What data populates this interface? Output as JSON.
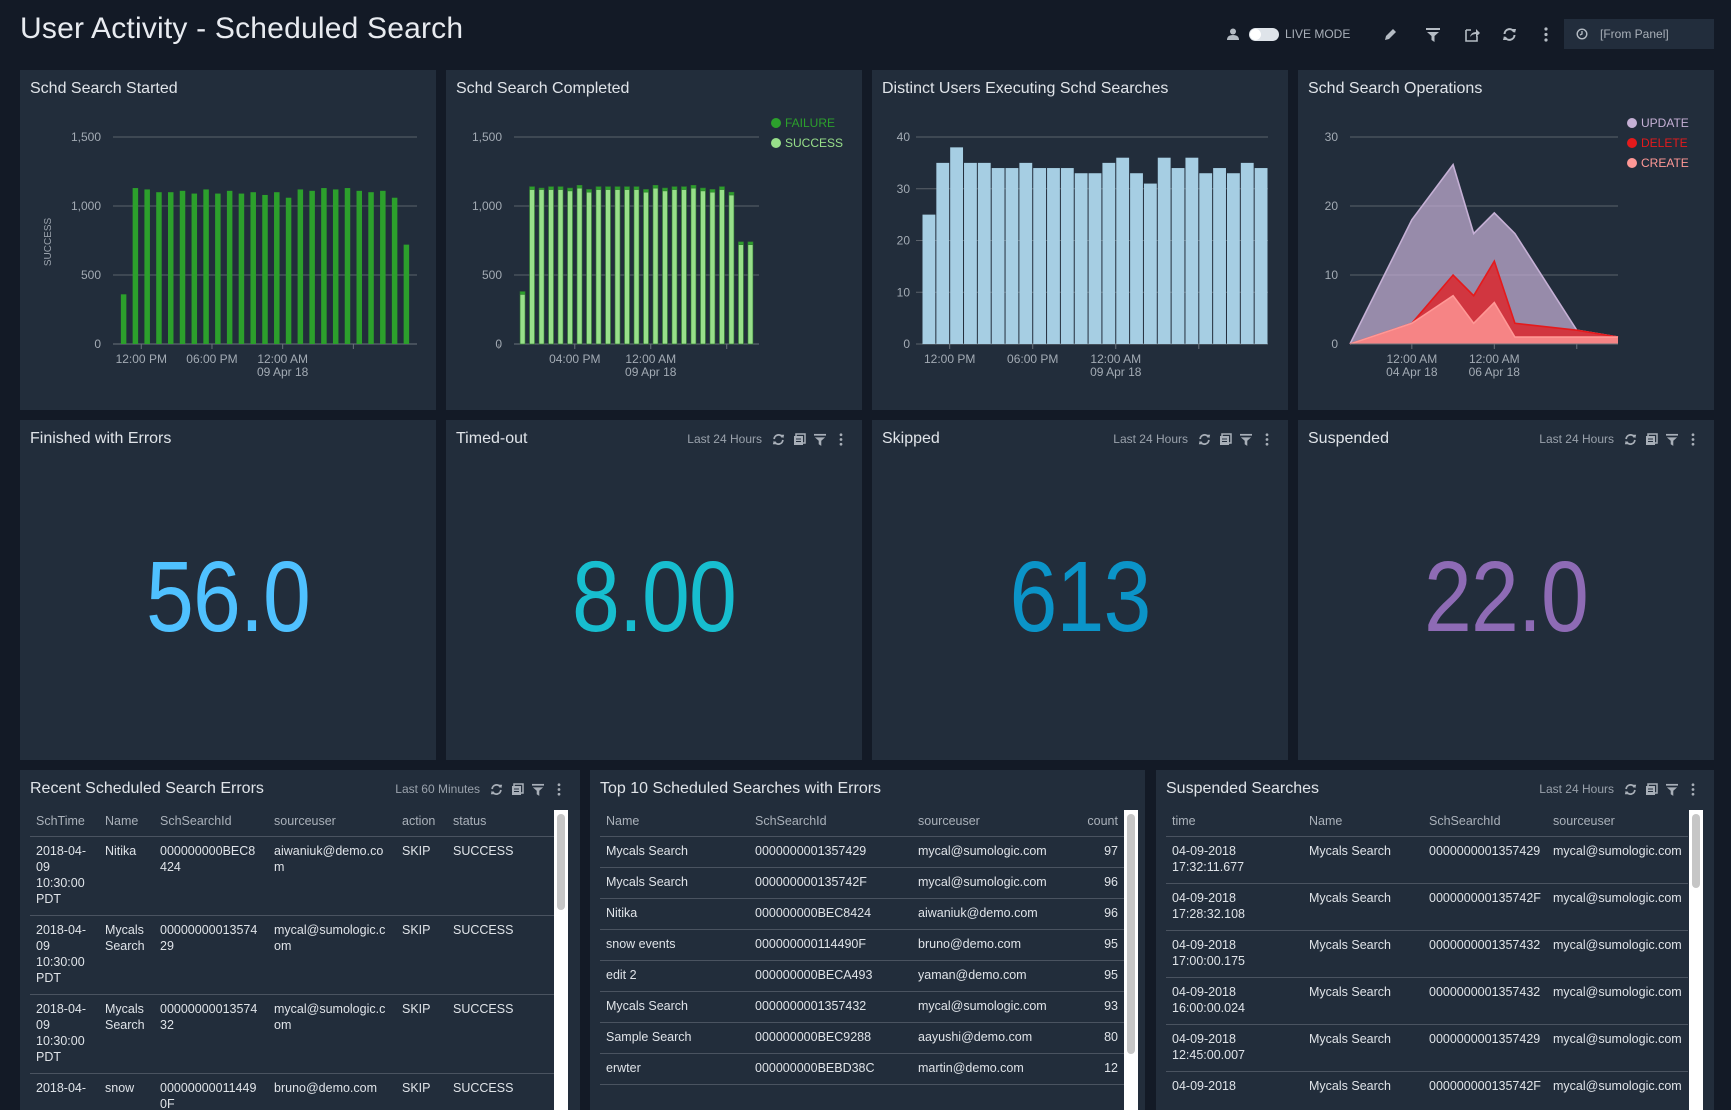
{
  "header": {
    "title": "User Activity - Scheduled Search",
    "live_mode_label": "LIVE MODE",
    "live_mode_on": false,
    "time_range": "[From Panel]",
    "icons": [
      "user-icon",
      "pencil-icon",
      "filter-icon",
      "share-icon",
      "refresh-icon",
      "more-vertical-icon",
      "clock-icon"
    ]
  },
  "panels": {
    "started": {
      "title": "Schd Search Started"
    },
    "completed": {
      "title": "Schd Search Completed"
    },
    "distinct": {
      "title": "Distinct Users Executing Schd Searches"
    },
    "operations": {
      "title": "Schd Search Operations"
    },
    "errors": {
      "title": "Finished with Errors",
      "value": "56.0",
      "color": "#4fc1ff"
    },
    "timedout": {
      "title": "Timed-out",
      "range": "Last 24 Hours",
      "value": "8.00",
      "color": "#17becf"
    },
    "skipped": {
      "title": "Skipped",
      "range": "Last 24 Hours",
      "value": "613",
      "color": "#0b94c8"
    },
    "suspended": {
      "title": "Suspended",
      "range": "Last 24 Hours",
      "value": "22.0",
      "color": "#8e6bb5"
    }
  },
  "chart_data": [
    {
      "type": "bar",
      "ylabel": "SUCCESS",
      "ylim": [
        0,
        1500
      ],
      "yticks": [
        "0",
        "500",
        "1,000",
        "1,500"
      ],
      "x_start": "2018-04-08 10:00",
      "interval": "1h",
      "xticks": [
        {
          "t": "2018-04-08 12:00",
          "l1": "12:00 PM",
          "l2": ""
        },
        {
          "t": "2018-04-08 18:00",
          "l1": "06:00 PM",
          "l2": ""
        },
        {
          "t": "2018-04-09 00:00",
          "l1": "12:00 AM",
          "l2": "09 Apr 18"
        },
        {
          "t": "2018-04-09 06:00",
          "l1": "",
          "l2": ""
        }
      ],
      "grid": true,
      "series": [
        {
          "color": "#2ca02c",
          "values": [
            360,
            1130,
            1120,
            1100,
            1100,
            1110,
            1090,
            1120,
            1090,
            1110,
            1090,
            1100,
            1080,
            1100,
            1060,
            1120,
            1110,
            1130,
            1120,
            1130,
            1110,
            1100,
            1110,
            1060,
            720
          ]
        }
      ]
    },
    {
      "type": "bar",
      "stacked": true,
      "ylim": [
        0,
        1500
      ],
      "yticks": [
        "0",
        "500",
        "1,000",
        "1,500"
      ],
      "x_start": "2018-04-08 10:00",
      "interval": "1h",
      "xticks": [
        {
          "t": "2018-04-08 08:00",
          "l1": "",
          "l2": ""
        },
        {
          "t": "2018-04-08 16:00",
          "l1": "04:00 PM",
          "l2": ""
        },
        {
          "t": "2018-04-09 00:00",
          "l1": "12:00 AM",
          "l2": "09 Apr 18"
        },
        {
          "t": "2018-04-09 08:00",
          "l1": "",
          "l2": ""
        }
      ],
      "legend": "top-right",
      "grid": true,
      "series": [
        {
          "name": "SUCCESS",
          "color": "#98df8a",
          "values": [
            360,
            1120,
            1120,
            1120,
            1120,
            1110,
            1130,
            1100,
            1120,
            1120,
            1120,
            1120,
            1120,
            1100,
            1130,
            1110,
            1120,
            1120,
            1130,
            1110,
            1100,
            1120,
            1080,
            720,
            720
          ]
        },
        {
          "name": "FAILURE",
          "color": "#2ca02c",
          "values": [
            20,
            20,
            10,
            20,
            20,
            20,
            20,
            20,
            20,
            20,
            20,
            20,
            20,
            20,
            20,
            20,
            20,
            20,
            20,
            20,
            20,
            20,
            20,
            20,
            20
          ]
        }
      ]
    },
    {
      "type": "bar",
      "ylim": [
        0,
        40
      ],
      "yticks": [
        "0",
        "10",
        "20",
        "30",
        "40"
      ],
      "x_start": "2018-04-08 10:00",
      "interval": "1h",
      "xticks": [
        {
          "t": "2018-04-08 12:00",
          "l1": "12:00 PM",
          "l2": ""
        },
        {
          "t": "2018-04-08 18:00",
          "l1": "06:00 PM",
          "l2": ""
        },
        {
          "t": "2018-04-09 00:00",
          "l1": "12:00 AM",
          "l2": "09 Apr 18"
        },
        {
          "t": "2018-04-09 06:00",
          "l1": "",
          "l2": ""
        }
      ],
      "grid": true,
      "series": [
        {
          "color": "#a6cee3",
          "values": [
            25,
            35,
            38,
            35,
            35,
            34,
            34,
            35,
            34,
            34,
            34,
            33,
            33,
            35,
            36,
            33,
            31,
            36,
            34,
            36,
            33,
            34,
            33,
            35,
            34
          ]
        }
      ]
    },
    {
      "type": "area",
      "stacked": true,
      "ylim": [
        0,
        30
      ],
      "yticks": [
        "0",
        "10",
        "20",
        "30"
      ],
      "x": [
        "2018-04-02 12:00",
        "2018-04-04 00:00",
        "2018-04-05 00:00",
        "2018-04-05 12:00",
        "2018-04-06 00:00",
        "2018-04-06 12:00",
        "2018-04-08 00:00",
        "2018-04-09 00:00"
      ],
      "xticks": [
        {
          "t": "2018-04-04 00:00",
          "l1": "12:00 AM",
          "l2": "04 Apr 18"
        },
        {
          "t": "2018-04-06 00:00",
          "l1": "12:00 AM",
          "l2": "06 Apr 18"
        },
        {
          "t": "2018-04-08 00:00",
          "l1": "",
          "l2": ""
        }
      ],
      "legend": "top-right",
      "grid": true,
      "series": [
        {
          "name": "CREATE",
          "color": "#ff9896",
          "values": [
            0,
            3,
            7,
            3,
            6,
            1,
            1,
            1
          ]
        },
        {
          "name": "DELETE",
          "color": "#e41a1c",
          "values": [
            0,
            0,
            3,
            4,
            6,
            2,
            1,
            0
          ]
        },
        {
          "name": "UPDATE",
          "color": "#c5b0d5",
          "values": [
            0,
            15,
            16,
            9,
            7,
            13,
            0,
            0
          ]
        }
      ],
      "legend_order": [
        "UPDATE",
        "DELETE",
        "CREATE"
      ]
    }
  ],
  "tables": {
    "recent": {
      "title": "Recent Scheduled Search Errors",
      "range": "Last 60 Minutes",
      "columns": [
        "SchTime",
        "Name",
        "SchSearchId",
        "sourceuser",
        "action",
        "status"
      ],
      "rows": [
        [
          "2018-04-09 10:30:00 PDT",
          "Nitika",
          "000000000BEC8424",
          "aiwaniuk@demo.com",
          "SKIP",
          "SUCCESS"
        ],
        [
          "2018-04-09 10:30:00 PDT",
          "Mycals Search",
          "0000000001357429",
          "mycal@sumologic.com",
          "SKIP",
          "SUCCESS"
        ],
        [
          "2018-04-09 10:30:00 PDT",
          "Mycals Search",
          "0000000001357432",
          "mycal@sumologic.com",
          "SKIP",
          "SUCCESS"
        ],
        [
          "2018-04-",
          "snow",
          "000000000114490F",
          "bruno@demo.com",
          "SKIP",
          "SUCCESS"
        ]
      ]
    },
    "top10": {
      "title": "Top 10 Scheduled Searches with Errors",
      "columns": [
        "Name",
        "SchSearchId",
        "sourceuser",
        "count"
      ],
      "rows": [
        [
          "Mycals Search",
          "0000000001357429",
          "mycal@sumologic.com",
          "97"
        ],
        [
          "Mycals Search",
          "000000000135742F",
          "mycal@sumologic.com",
          "96"
        ],
        [
          "Nitika",
          "000000000BEC8424",
          "aiwaniuk@demo.com",
          "96"
        ],
        [
          "snow events",
          "000000000114490F",
          "bruno@demo.com",
          "95"
        ],
        [
          "edit 2",
          "000000000BECA493",
          "yaman@demo.com",
          "95"
        ],
        [
          "Mycals Search",
          "0000000001357432",
          "mycal@sumologic.com",
          "93"
        ],
        [
          "Sample Search",
          "000000000BEC9288",
          "aayushi@demo.com",
          "80"
        ],
        [
          "erwter",
          "000000000BEBD38C",
          "martin@demo.com",
          "12"
        ]
      ]
    },
    "suspended": {
      "title": "Suspended Searches",
      "range": "Last 24 Hours",
      "columns": [
        "time",
        "Name",
        "SchSearchId",
        "sourceuser"
      ],
      "rows": [
        [
          "04-09-2018 17:32:11.677",
          "Mycals Search",
          "0000000001357429",
          "mycal@sumologic.com"
        ],
        [
          "04-09-2018 17:28:32.108",
          "Mycals Search",
          "000000000135742F",
          "mycal@sumologic.com"
        ],
        [
          "04-09-2018 17:00:00.175",
          "Mycals Search",
          "0000000001357432",
          "mycal@sumologic.com"
        ],
        [
          "04-09-2018 16:00:00.024",
          "Mycals Search",
          "0000000001357432",
          "mycal@sumologic.com"
        ],
        [
          "04-09-2018 12:45:00.007",
          "Mycals Search",
          "0000000001357429",
          "mycal@sumologic.com"
        ],
        [
          "04-09-2018",
          "Mycals Search",
          "000000000135742F",
          "mycal@sumologic.com"
        ]
      ]
    }
  }
}
